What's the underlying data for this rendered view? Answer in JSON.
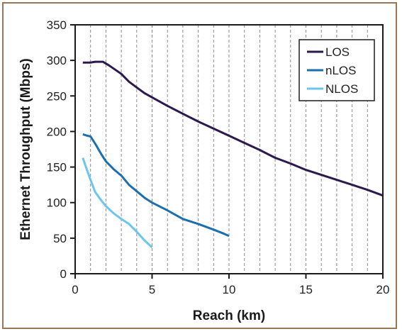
{
  "chart_data": {
    "type": "line",
    "title": "",
    "xlabel": "Reach (km)",
    "ylabel": "Ethernet Throughput (Mbps)",
    "xlim": [
      0,
      20
    ],
    "ylim": [
      0,
      350
    ],
    "xticks": [
      0,
      5,
      10,
      15,
      20
    ],
    "yticks": [
      0,
      50,
      100,
      150,
      200,
      250,
      300,
      350
    ],
    "grid": "vertical dashed every 1 km",
    "legend_position": "top-right",
    "frame_color": "#9b7652",
    "series": [
      {
        "name": "LOS",
        "color": "#2b1a4e",
        "points": [
          [
            0.5,
            297
          ],
          [
            1.0,
            297
          ],
          [
            1.3,
            298
          ],
          [
            1.8,
            298
          ],
          [
            2.2,
            293
          ],
          [
            2.6,
            287
          ],
          [
            3.0,
            281
          ],
          [
            3.5,
            270
          ],
          [
            4.0,
            262
          ],
          [
            4.5,
            254
          ],
          [
            5.0,
            248
          ],
          [
            6.0,
            236
          ],
          [
            7.0,
            225
          ],
          [
            8.0,
            214
          ],
          [
            9.0,
            204
          ],
          [
            10.0,
            194
          ],
          [
            11.0,
            184
          ],
          [
            12.0,
            174
          ],
          [
            13.0,
            163
          ],
          [
            14.0,
            155
          ],
          [
            15.0,
            146
          ],
          [
            16.0,
            139
          ],
          [
            17.0,
            132
          ],
          [
            18.0,
            125
          ],
          [
            19.0,
            118
          ],
          [
            20.0,
            110
          ]
        ]
      },
      {
        "name": "nLOS",
        "color": "#1b6fae",
        "points": [
          [
            0.5,
            196
          ],
          [
            0.8,
            194
          ],
          [
            1.0,
            193
          ],
          [
            1.3,
            183
          ],
          [
            1.7,
            168
          ],
          [
            2.0,
            158
          ],
          [
            2.5,
            147
          ],
          [
            3.0,
            138
          ],
          [
            3.5,
            125
          ],
          [
            4.0,
            116
          ],
          [
            4.5,
            107
          ],
          [
            5.0,
            100
          ],
          [
            6.0,
            89
          ],
          [
            7.0,
            77
          ],
          [
            8.0,
            70
          ],
          [
            9.0,
            62
          ],
          [
            9.7,
            56
          ],
          [
            10.0,
            53
          ]
        ]
      },
      {
        "name": "NLOS",
        "color": "#6cc6ec",
        "points": [
          [
            0.5,
            163
          ],
          [
            0.7,
            150
          ],
          [
            1.0,
            132
          ],
          [
            1.3,
            115
          ],
          [
            1.7,
            103
          ],
          [
            2.0,
            95
          ],
          [
            2.5,
            85
          ],
          [
            3.0,
            77
          ],
          [
            3.5,
            70
          ],
          [
            4.0,
            59
          ],
          [
            4.5,
            47
          ],
          [
            5.0,
            37
          ]
        ]
      }
    ]
  }
}
